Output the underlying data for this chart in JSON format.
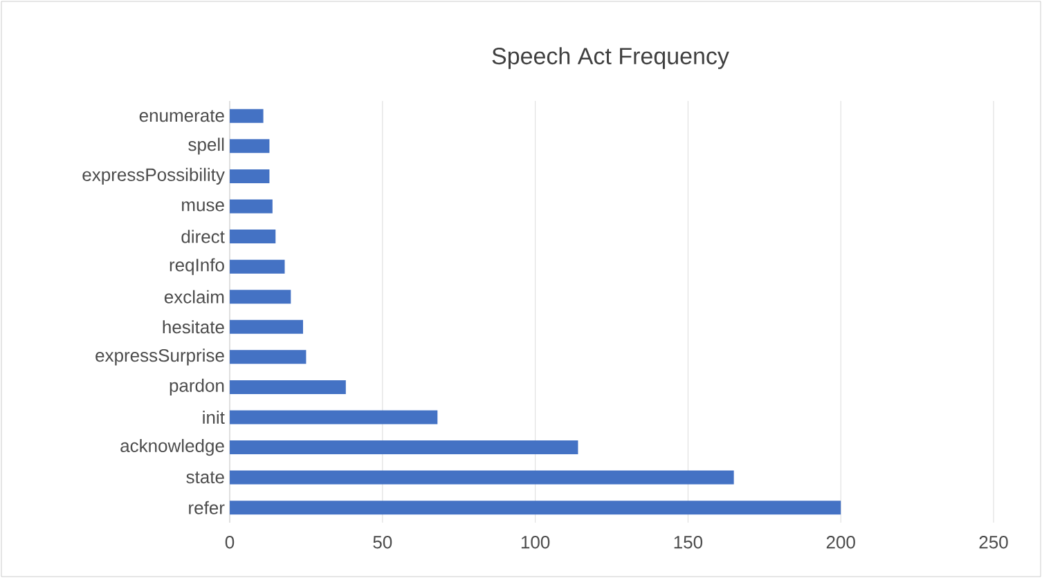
{
  "chart_data": {
    "type": "bar",
    "orientation": "horizontal",
    "title": "Speech Act Frequency",
    "categories": [
      "enumerate",
      "spell",
      "expressPossibility",
      "muse",
      "direct",
      "reqInfo",
      "exclaim",
      "hesitate",
      "expressSurprise",
      "pardon",
      "init",
      "acknowledge",
      "state",
      "refer"
    ],
    "values": [
      11,
      13,
      13,
      14,
      15,
      18,
      20,
      24,
      25,
      38,
      68,
      114,
      165,
      200
    ],
    "color": "#4472c4",
    "xlim": [
      0,
      250
    ],
    "xticks": [
      0,
      50,
      100,
      150,
      200,
      250
    ],
    "grid": "x"
  }
}
